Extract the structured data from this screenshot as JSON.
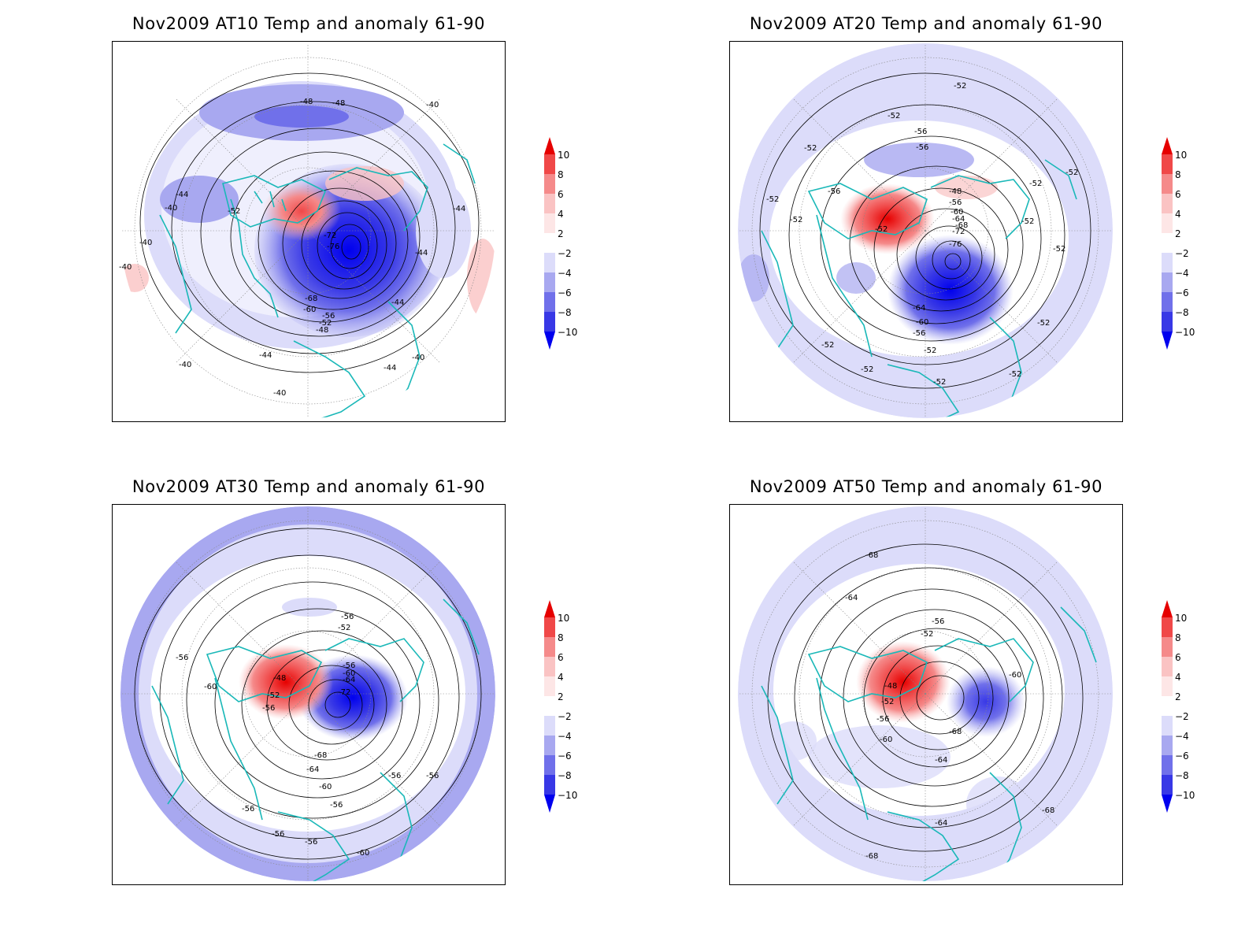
{
  "legend": {
    "ticks": [
      "10",
      "8",
      "6",
      "4",
      "2",
      "−2",
      "−4",
      "−6",
      "−8",
      "−10"
    ],
    "colors": [
      "#e60000",
      "#f04848",
      "#f58a8a",
      "#fac3c3",
      "#fde6e6",
      "#ffffff",
      "#dcdcfa",
      "#a8a8f0",
      "#7070ea",
      "#3838e6",
      "#0000ee"
    ]
  },
  "land_color": "#1ab8b8",
  "panels": [
    {
      "title": "Nov2009 AT10 Temp and anomaly 61-90",
      "contour_labels": [
        "-48",
        "-48",
        "-40",
        "-44",
        "-40",
        "-44",
        "-52",
        "-40",
        "-72",
        "-76",
        "-44",
        "-40",
        "-44",
        "-68",
        "-60",
        "-56",
        "-52",
        "-48",
        "-44",
        "-44",
        "-40",
        "-40",
        "-40"
      ]
    },
    {
      "title": "Nov2009 AT20 Temp and anomaly 61-90",
      "contour_labels": [
        "-52",
        "-52",
        "-56",
        "-56",
        "-52",
        "-52",
        "-56",
        "-52",
        "-52",
        "-48",
        "-56",
        "-60",
        "-64",
        "-68",
        "-72",
        "-76",
        "-52",
        "-52",
        "-52",
        "-52",
        "-64",
        "-60",
        "-56",
        "-52",
        "-52",
        "-52",
        "-52",
        "-52",
        "-52"
      ]
    },
    {
      "title": "Nov2009 AT30 Temp and anomaly 61-90",
      "contour_labels": [
        "-56",
        "-52",
        "-56",
        "-60",
        "-48",
        "-52",
        "-56",
        "-56",
        "-60",
        "-64",
        "-72",
        "-68",
        "-64",
        "-60",
        "-56",
        "-56",
        "-56",
        "-56",
        "-56",
        "-56",
        "-60"
      ]
    },
    {
      "title": "Nov2009 AT50 Temp and anomaly 61-90",
      "contour_labels": [
        "-68",
        "-64",
        "-56",
        "-52",
        "-48",
        "-52",
        "-56",
        "-60",
        "-60",
        "-68",
        "-64",
        "-64",
        "-68",
        "-68"
      ]
    }
  ]
}
